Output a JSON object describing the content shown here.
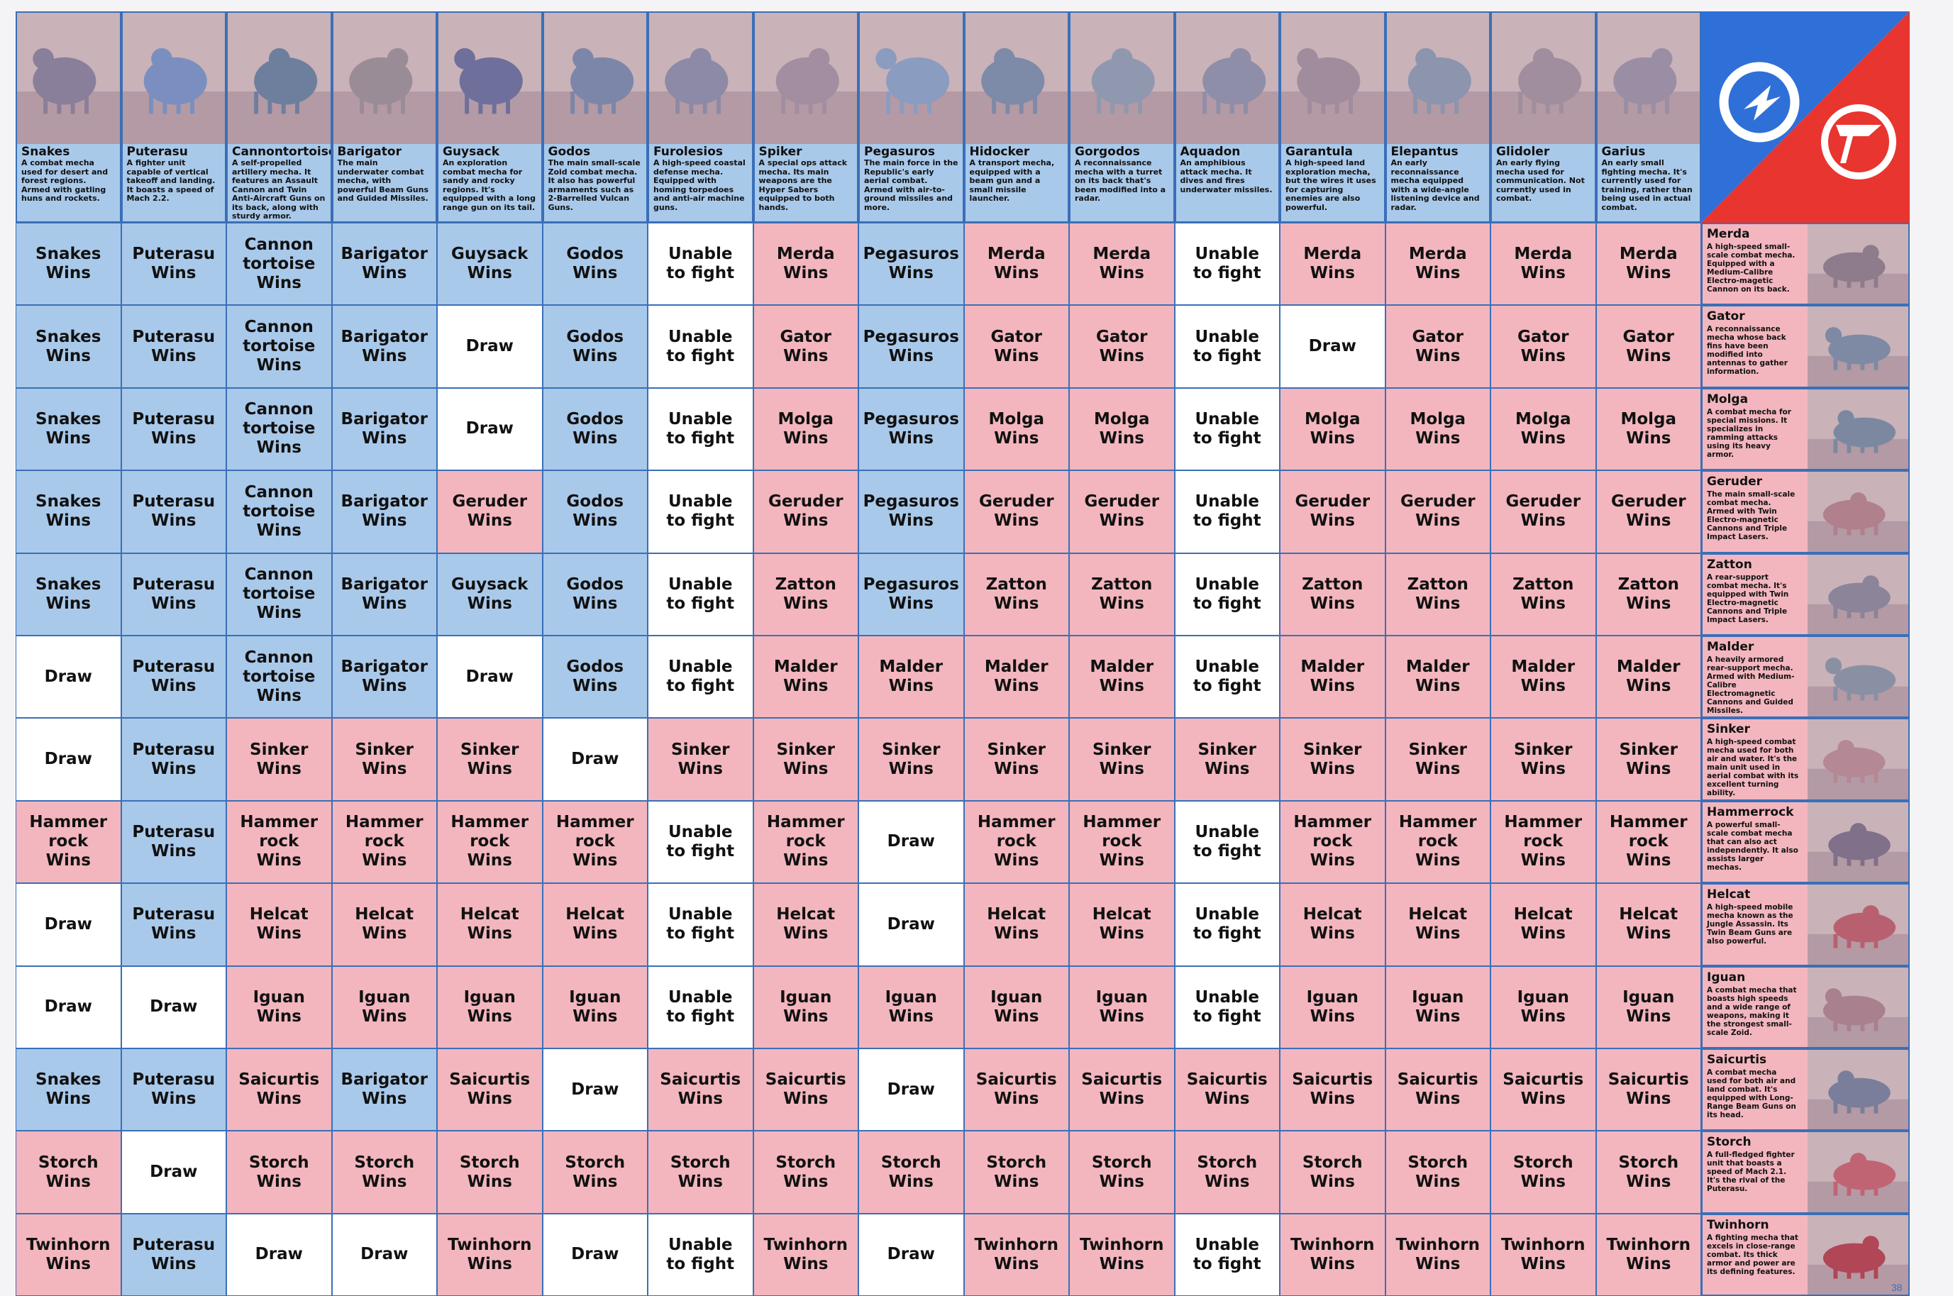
{
  "columns": [
    {
      "name": "Snakes",
      "desc": "A combat mecha used for desert and forest regions. Armed with gatling huns and rockets.",
      "color": "#8a7f9a"
    },
    {
      "name": "Puterasu",
      "desc": "A fighter unit capable of vertical takeoff and landing. It boasts a speed of Mach 2.2.",
      "color": "#7a8fc0"
    },
    {
      "name": "Cannontortoise",
      "desc": "A self-propelled artillery mecha. It features an Assault Cannon and Twin Anti-Aircraft Guns on its back, along with sturdy armor.",
      "color": "#6e7f9e"
    },
    {
      "name": "Barigator",
      "desc": "The main underwater combat mecha, with powerful Beam Guns and Guided Missiles.",
      "color": "#9a8c96"
    },
    {
      "name": "Guysack",
      "desc": "An exploration combat mecha for sandy and rocky regions. It's equipped with a long range gun on its tail.",
      "color": "#6f6f9c"
    },
    {
      "name": "Godos",
      "desc": "The main small-scale Zoid combat mecha. It also has powerful armaments such as 2-Barrelled Vulcan Guns.",
      "color": "#7c86a8"
    },
    {
      "name": "Furolesios",
      "desc": "A high-speed coastal defense mecha. Equipped with homing torpedoes and anti-air machine guns.",
      "color": "#8c8aa6"
    },
    {
      "name": "Spiker",
      "desc": "A special ops attack mecha. Its main weapons are the Hyper Sabers equipped to both hands.",
      "color": "#a28ea0"
    },
    {
      "name": "Pegasuros",
      "desc": "The main force in the Republic's early aerial combat. Armed with air-to-ground missiles and more.",
      "color": "#8a9cc0"
    },
    {
      "name": "Hidocker",
      "desc": "A transport mecha, equipped with a beam gun and a small missile launcher.",
      "color": "#7d8aa8"
    },
    {
      "name": "Gorgodos",
      "desc": "A reconnaissance mecha with a turret on its back that's been modified into a radar.",
      "color": "#9098b0"
    },
    {
      "name": "Aquadon",
      "desc": "An amphibious attack mecha. It dives and fires underwater missiles.",
      "color": "#8e8ea8"
    },
    {
      "name": "Garantula",
      "desc": "A high-speed land exploration mecha, but the wires it uses for capturing enemies are also powerful.",
      "color": "#a08c9c"
    },
    {
      "name": "Elepantus",
      "desc": "An early reconnaissance mecha equipped with a wide-angle listening device and radar.",
      "color": "#8c94ae"
    },
    {
      "name": "Glidoler",
      "desc": "An early flying mecha used for communication. Not currently used in combat.",
      "color": "#a08e9e"
    },
    {
      "name": "Garius",
      "desc": "An early small fighting mecha. It's currently used for training, rather than being used in actual combat.",
      "color": "#9a8ea4"
    }
  ],
  "rows": [
    {
      "name": "Merda",
      "desc": "A high-speed small-scale combat mecha. Equipped with a Medium-Calibre Electro-magetic Cannon on its back.",
      "color": "#8e7c8c"
    },
    {
      "name": "Gator",
      "desc": "A reconnaissance mecha whose back fins have been modified into antennas to gather information.",
      "color": "#7e8aa4"
    },
    {
      "name": "Molga",
      "desc": "A combat mecha for special missions. It specializes in ramming attacks using its heavy armor.",
      "color": "#7c88a0"
    },
    {
      "name": "Geruder",
      "desc": "The main small-scale combat mecha. Armed with Twin Electro-magnetic Cannons and Triple Impact Lasers.",
      "color": "#b0808c"
    },
    {
      "name": "Zatton",
      "desc": "A rear-support combat mecha. It's equipped with Twin Electro-magnetic Cannons and Triple Impact Lasers.",
      "color": "#8c8498"
    },
    {
      "name": "Malder",
      "desc": "A heavily armored rear-support mecha. Armed with Medium-Calibre Electromagnetic Cannons and Guided Missiles.",
      "color": "#8a90a4"
    },
    {
      "name": "Sinker",
      "desc": "A high-speed combat mecha used for both air and water. It's the main unit used in aerial combat with its excellent turning ability.",
      "color": "#b48894"
    },
    {
      "name": "Hammerrock",
      "desc": "A powerful small-scale combat mecha that can also act independently. It also assists larger mechas.",
      "color": "#80708a"
    },
    {
      "name": "Helcat",
      "desc": "A high-speed mobile mecha known as the Jungle Assassin. Its Twin Beam Guns are also powerful.",
      "color": "#b86070"
    },
    {
      "name": "Iguan",
      "desc": "A combat mecha that boasts high speeds and a wide range of weapons, making it the strongest small-scale Zoid.",
      "color": "#a8808e"
    },
    {
      "name": "Saicurtis",
      "desc": "A combat mecha used for both air and land combat. It's equipped with Long-Range Beam Guns on its head.",
      "color": "#7a7e9a"
    },
    {
      "name": "Storch",
      "desc": "A full-fledged fighter unit that boasts a speed of Mach 2.1. It's the rival of the Puterasu.",
      "color": "#c06474"
    },
    {
      "name": "Twinhorn",
      "desc": "A fighting mecha that excels in close-range combat. Its thick armor and power are its defining features.",
      "color": "#b04656"
    }
  ],
  "results": [
    [
      "Snakes\nWins",
      "Puterasu\nWins",
      "Cannon\ntortoise\nWins",
      "Barigator\nWins",
      "Guysack\nWins",
      "Godos\nWins",
      "Unable\nto fight",
      "Merda\nWins",
      "Pegasuros\nWins",
      "Merda\nWins",
      "Merda\nWins",
      "Unable\nto fight",
      "Merda\nWins",
      "Merda\nWins",
      "Merda\nWins",
      "Merda\nWins"
    ],
    [
      "Snakes\nWins",
      "Puterasu\nWins",
      "Cannon\ntortoise\nWins",
      "Barigator\nWins",
      "Draw",
      "Godos\nWins",
      "Unable\nto fight",
      "Gator\nWins",
      "Pegasuros\nWins",
      "Gator\nWins",
      "Gator\nWins",
      "Unable\nto fight",
      "Draw",
      "Gator\nWins",
      "Gator\nWins",
      "Gator\nWins"
    ],
    [
      "Snakes\nWins",
      "Puterasu\nWins",
      "Cannon\ntortoise\nWins",
      "Barigator\nWins",
      "Draw",
      "Godos\nWins",
      "Unable\nto fight",
      "Molga\nWins",
      "Pegasuros\nWins",
      "Molga\nWins",
      "Molga\nWins",
      "Unable\nto fight",
      "Molga\nWins",
      "Molga\nWins",
      "Molga\nWins",
      "Molga\nWins"
    ],
    [
      "Snakes\nWins",
      "Puterasu\nWins",
      "Cannon\ntortoise\nWins",
      "Barigator\nWins",
      "Geruder\nWins",
      "Godos\nWins",
      "Unable\nto fight",
      "Geruder\nWins",
      "Pegasuros\nWins",
      "Geruder\nWins",
      "Geruder\nWins",
      "Unable\nto fight",
      "Geruder\nWins",
      "Geruder\nWins",
      "Geruder\nWins",
      "Geruder\nWins"
    ],
    [
      "Snakes\nWins",
      "Puterasu\nWins",
      "Cannon\ntortoise\nWins",
      "Barigator\nWins",
      "Guysack\nWins",
      "Godos\nWins",
      "Unable\nto fight",
      "Zatton\nWins",
      "Pegasuros\nWins",
      "Zatton\nWins",
      "Zatton\nWins",
      "Unable\nto fight",
      "Zatton\nWins",
      "Zatton\nWins",
      "Zatton\nWins",
      "Zatton\nWins"
    ],
    [
      "Draw",
      "Puterasu\nWins",
      "Cannon\ntortoise\nWins",
      "Barigator\nWins",
      "Draw",
      "Godos\nWins",
      "Unable\nto fight",
      "Malder\nWins",
      "Malder\nWins",
      "Malder\nWins",
      "Malder\nWins",
      "Unable\nto fight",
      "Malder\nWins",
      "Malder\nWins",
      "Malder\nWins",
      "Malder\nWins"
    ],
    [
      "Draw",
      "Puterasu\nWins",
      "Sinker\nWins",
      "Sinker\nWins",
      "Sinker\nWins",
      "Draw",
      "Sinker\nWins",
      "Sinker\nWins",
      "Sinker\nWins",
      "Sinker\nWins",
      "Sinker\nWins",
      "Sinker\nWins",
      "Sinker\nWins",
      "Sinker\nWins",
      "Sinker\nWins",
      "Sinker\nWins"
    ],
    [
      "Hammer\nrock\nWins",
      "Puterasu\nWins",
      "Hammer\nrock\nWins",
      "Hammer\nrock\nWins",
      "Hammer\nrock\nWins",
      "Hammer\nrock\nWins",
      "Unable\nto fight",
      "Hammer\nrock\nWins",
      "Draw",
      "Hammer\nrock\nWins",
      "Hammer\nrock\nWins",
      "Unable\nto fight",
      "Hammer\nrock\nWins",
      "Hammer\nrock\nWins",
      "Hammer\nrock\nWins",
      "Hammer\nrock\nWins"
    ],
    [
      "Draw",
      "Puterasu\nWins",
      "Helcat\nWins",
      "Helcat\nWins",
      "Helcat\nWins",
      "Helcat\nWins",
      "Unable\nto fight",
      "Helcat\nWins",
      "Draw",
      "Helcat\nWins",
      "Helcat\nWins",
      "Unable\nto fight",
      "Helcat\nWins",
      "Helcat\nWins",
      "Helcat\nWins",
      "Helcat\nWins"
    ],
    [
      "Draw",
      "Draw",
      "Iguan\nWins",
      "Iguan\nWins",
      "Iguan\nWins",
      "Iguan\nWins",
      "Unable\nto fight",
      "Iguan\nWins",
      "Iguan\nWins",
      "Iguan\nWins",
      "Iguan\nWins",
      "Unable\nto fight",
      "Iguan\nWins",
      "Iguan\nWins",
      "Iguan\nWins",
      "Iguan\nWins"
    ],
    [
      "Snakes\nWins",
      "Puterasu\nWins",
      "Saicurtis\nWins",
      "Barigator\nWins",
      "Saicurtis\nWins",
      "Draw",
      "Saicurtis\nWins",
      "Saicurtis\nWins",
      "Draw",
      "Saicurtis\nWins",
      "Saicurtis\nWins",
      "Saicurtis\nWins",
      "Saicurtis\nWins",
      "Saicurtis\nWins",
      "Saicurtis\nWins",
      "Saicurtis\nWins"
    ],
    [
      "Storch\nWins",
      "Draw",
      "Storch\nWins",
      "Storch\nWins",
      "Storch\nWins",
      "Storch\nWins",
      "Storch\nWins",
      "Storch\nWins",
      "Storch\nWins",
      "Storch\nWins",
      "Storch\nWins",
      "Storch\nWins",
      "Storch\nWins",
      "Storch\nWins",
      "Storch\nWins",
      "Storch\nWins"
    ],
    [
      "Twinhorn\nWins",
      "Puterasu\nWins",
      "Draw",
      "Draw",
      "Twinhorn\nWins",
      "Draw",
      "Unable\nto fight",
      "Twinhorn\nWins",
      "Draw",
      "Twinhorn\nWins",
      "Twinhorn\nWins",
      "Unable\nto fight",
      "Twinhorn\nWins",
      "Twinhorn\nWins",
      "Twinhorn\nWins",
      "Twinhorn\nWins"
    ]
  ],
  "colors": {
    "republic": "#a9c9ea",
    "empire": "#f3b6be",
    "neutral": "#ffffff",
    "border": "#3a6fb8",
    "emblem_blue": "#2f6fd8",
    "emblem_red": "#e8352f"
  },
  "emblem": {
    "left_icon": "republic-emblem-icon",
    "right_icon": "empire-emblem-icon"
  },
  "page_number": "38"
}
